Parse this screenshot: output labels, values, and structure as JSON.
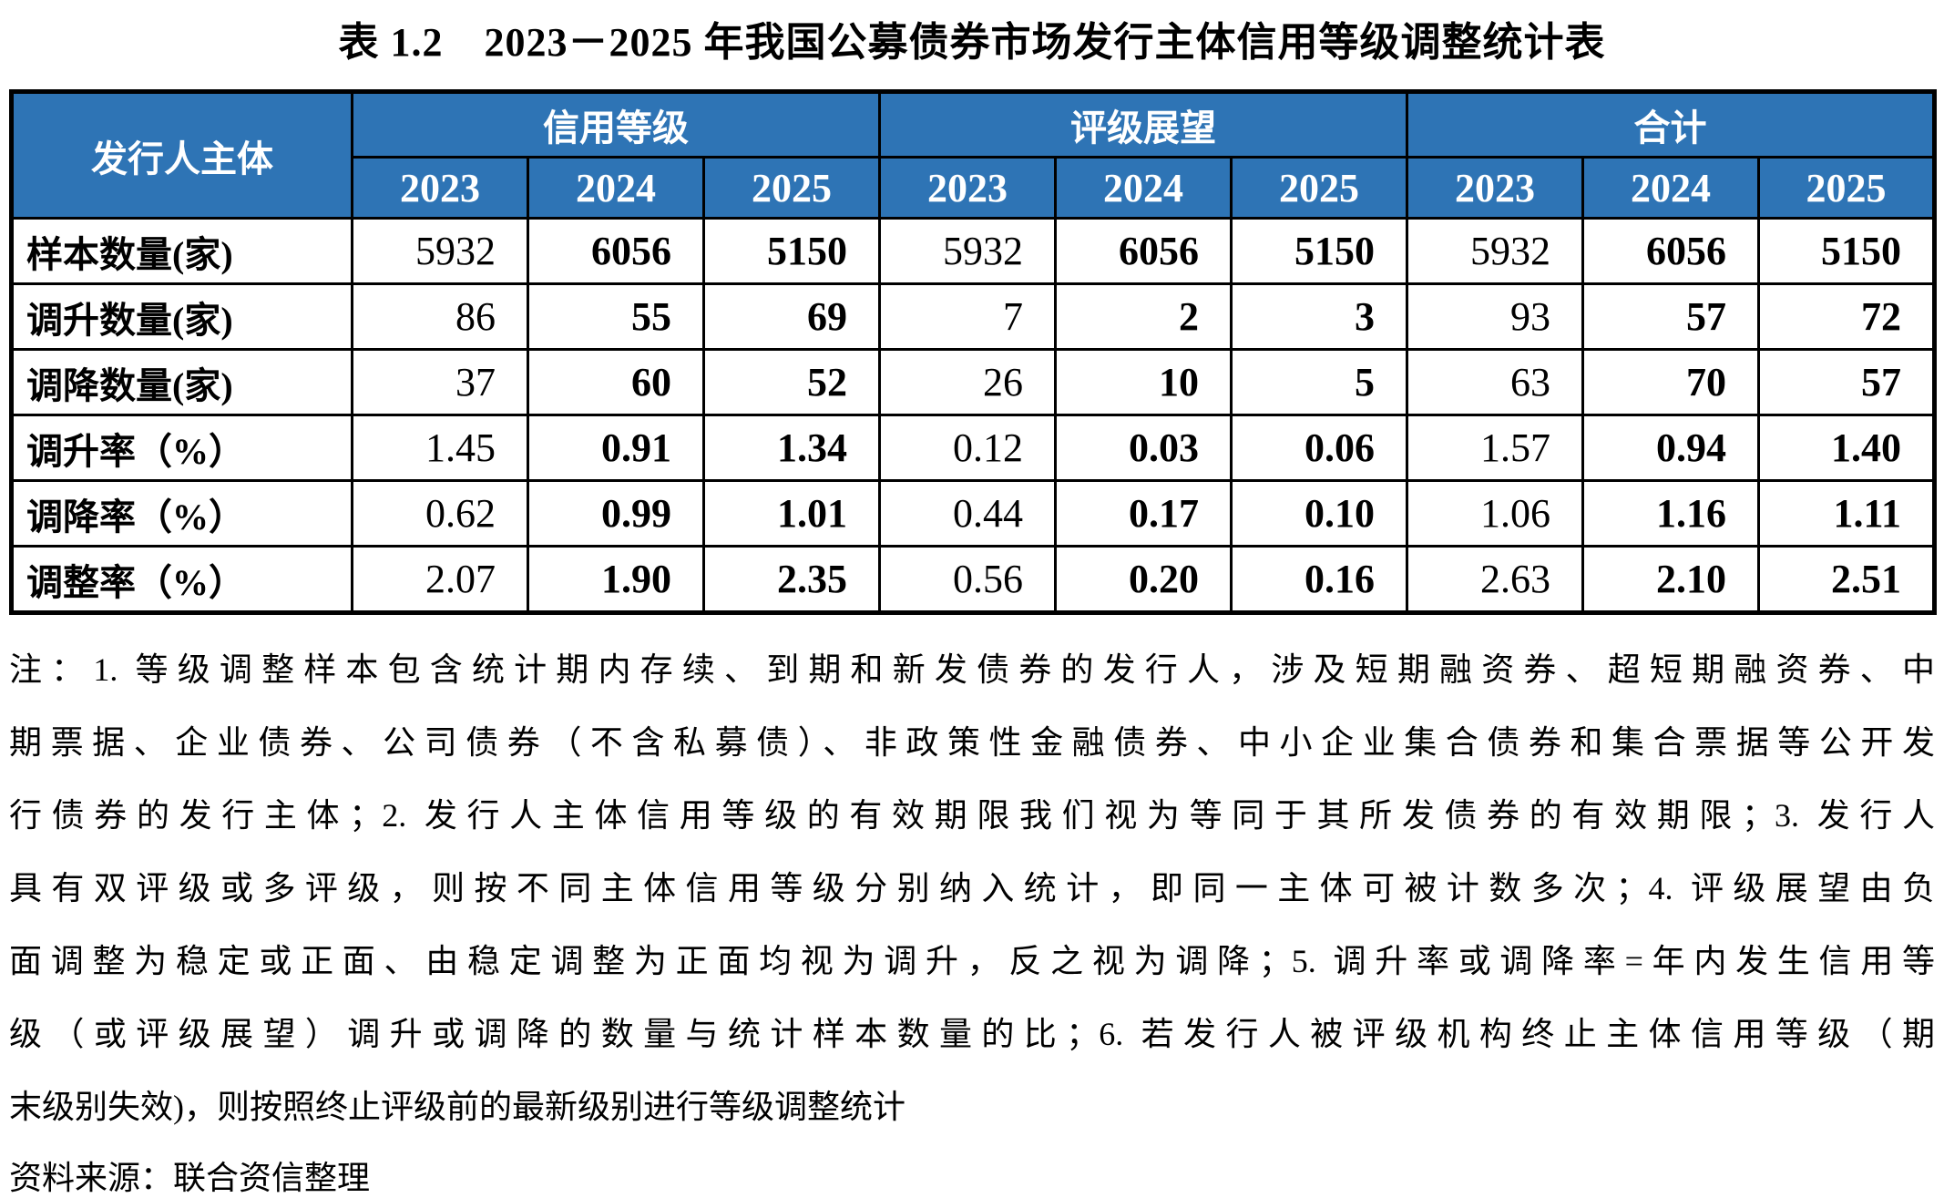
{
  "title": "表 1.2　2023－2025 年我国公募债券市场发行主体信用等级调整统计表",
  "table": {
    "corner_header": "发行人主体",
    "groups": [
      {
        "label": "信用等级",
        "years": [
          "2023",
          "2024",
          "2025"
        ]
      },
      {
        "label": "评级展望",
        "years": [
          "2023",
          "2024",
          "2025"
        ]
      },
      {
        "label": "合计",
        "years": [
          "2023",
          "2024",
          "2025"
        ]
      }
    ],
    "rows": [
      {
        "label": "样本数量(家)",
        "values": [
          "5932",
          "6056",
          "5150",
          "5932",
          "6056",
          "5150",
          "5932",
          "6056",
          "5150"
        ]
      },
      {
        "label": "调升数量(家)",
        "values": [
          "86",
          "55",
          "69",
          "7",
          "2",
          "3",
          "93",
          "57",
          "72"
        ]
      },
      {
        "label": "调降数量(家)",
        "values": [
          "37",
          "60",
          "52",
          "26",
          "10",
          "5",
          "63",
          "70",
          "57"
        ]
      },
      {
        "label": "调升率（%）",
        "values": [
          "1.45",
          "0.91",
          "1.34",
          "0.12",
          "0.03",
          "0.06",
          "1.57",
          "0.94",
          "1.40"
        ]
      },
      {
        "label": "调降率（%）",
        "values": [
          "0.62",
          "0.99",
          "1.01",
          "0.44",
          "0.17",
          "0.10",
          "1.06",
          "1.16",
          "1.11"
        ]
      },
      {
        "label": "调整率（%）",
        "values": [
          "2.07",
          "1.90",
          "2.35",
          "0.56",
          "0.20",
          "0.16",
          "2.63",
          "2.10",
          "2.51"
        ]
      }
    ]
  },
  "notes": {
    "lines": [
      "注：1. 等级调整样本包含统计期内存续、到期和新发债券的发行人，涉及短期融资券、超短期融资券、中",
      "期票据、企业债券、公司债券（不含私募债）、非政策性金融债券、中小企业集合债券和集合票据等公开发",
      "行债券的发行主体；2. 发行人主体信用等级的有效期限我们视为等同于其所发债券的有效期限；3. 发行人",
      "具有双评级或多评级，则按不同主体信用等级分别纳入统计，即同一主体可被计数多次；4. 评级展望由负",
      "面调整为稳定或正面、由稳定调整为正面均视为调升，反之视为调降；5. 调升率或调降率=年内发生信用等",
      "级（或评级展望）调升或调降的数量与统计样本数量的比；6. 若发行人被评级机构终止主体信用等级（期",
      "末级别失效)，则按照终止评级前的最新级别进行等级调整统计"
    ]
  },
  "source": "资料来源：联合资信整理",
  "colors": {
    "header_bg": "#2E74B5",
    "header_text": "#FFFFFF",
    "border": "#000000",
    "body_text": "#000000"
  }
}
